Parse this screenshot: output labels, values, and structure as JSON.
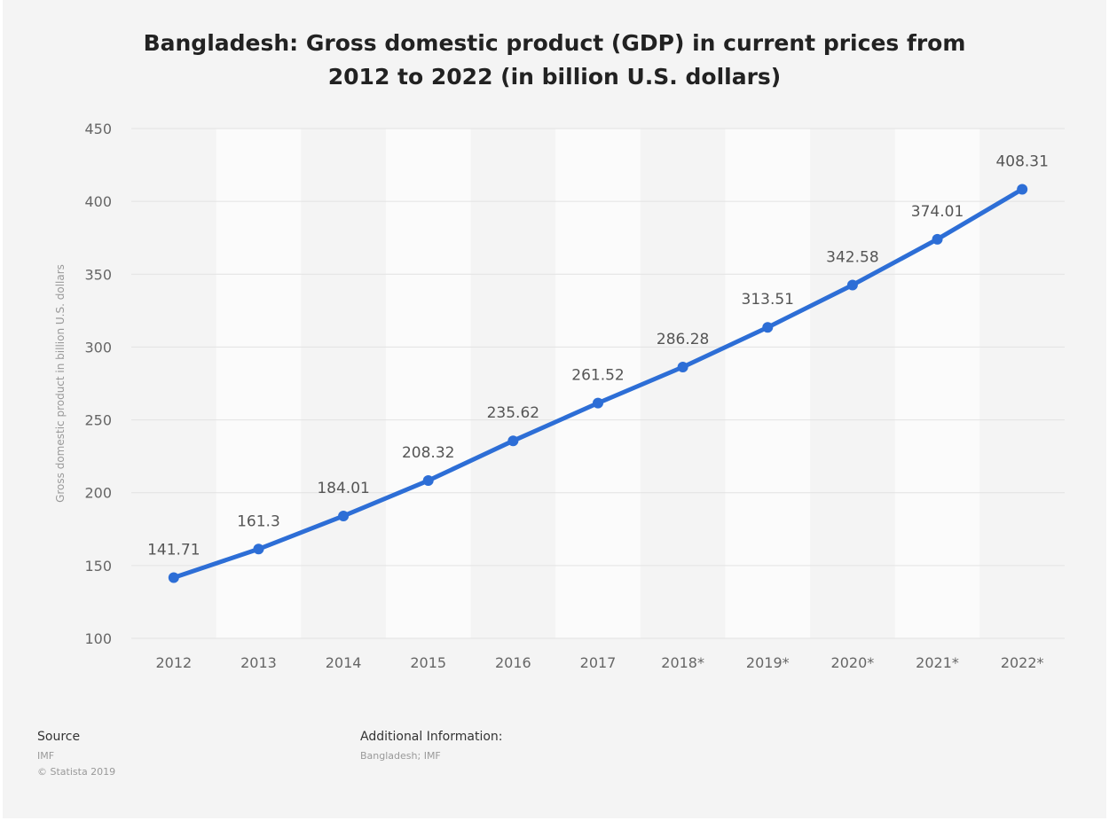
{
  "chart_data": {
    "type": "line",
    "title": "Bangladesh: Gross domestic product (GDP) in current prices from 2012 to 2022 (in billion U.S. dollars)",
    "title_lines": [
      "Bangladesh: Gross domestic product (GDP) in current prices from",
      "2012 to 2022 (in billion U.S. dollars)"
    ],
    "xlabel": "",
    "ylabel": "Gross domestic product in billion U.S. dollars",
    "categories": [
      "2012",
      "2013",
      "2014",
      "2015",
      "2016",
      "2017",
      "2018*",
      "2019*",
      "2020*",
      "2021*",
      "2022*"
    ],
    "series": [
      {
        "values": [
          141.71,
          161.3,
          184.01,
          208.32,
          235.62,
          261.52,
          286.28,
          313.51,
          342.58,
          374.01,
          408.31
        ],
        "labels": [
          "141.71",
          "161.3",
          "184.01",
          "208.32",
          "235.62",
          "261.52",
          "286.28",
          "313.51",
          "342.58",
          "374.01",
          "408.31"
        ],
        "color": "#2d6ed6"
      }
    ],
    "ylim": [
      100,
      450
    ],
    "yticks": [
      100,
      150,
      200,
      250,
      300,
      350,
      400,
      450
    ],
    "grid": true,
    "legend": "none"
  },
  "footer": {
    "source_heading": "Source",
    "source_lines": [
      "IMF",
      "© Statista 2019"
    ],
    "additional_heading": "Additional Information:",
    "additional_text": "Bangladesh; IMF"
  },
  "colors": {
    "background": "#f4f4f4",
    "band": "#fbfbfb",
    "line": "#2d6ed6",
    "text": "#555555"
  }
}
